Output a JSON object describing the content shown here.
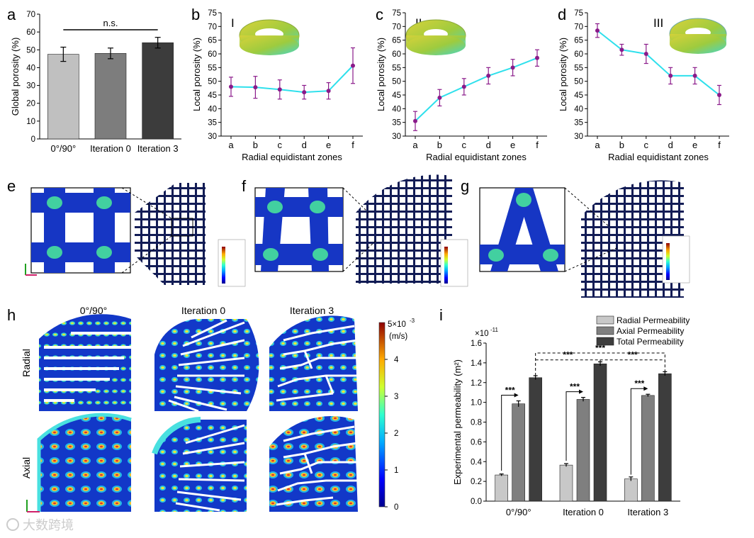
{
  "panel_labels": {
    "a": "a",
    "b": "b",
    "c": "c",
    "d": "d",
    "e": "e",
    "f": "f",
    "g": "g",
    "h": "h",
    "i": "i"
  },
  "watermark": "大数跨境",
  "chart_data": [
    {
      "id": "a",
      "type": "bar",
      "ylabel": "Global porosity (%)",
      "ylim": [
        0,
        70
      ],
      "yticks": [
        0,
        10,
        20,
        30,
        40,
        50,
        60,
        70
      ],
      "categories": [
        "0°/90°",
        "Iteration 0",
        "Iteration 3"
      ],
      "values": [
        47.5,
        48,
        54
      ],
      "errors": [
        4,
        3,
        3
      ],
      "colors": [
        "#c0c0c0",
        "#7d7d7d",
        "#3c3c3c"
      ],
      "annotation": "n.s."
    },
    {
      "id": "b",
      "type": "line",
      "roman": "I",
      "xlabel": "Radial equidistant zones",
      "ylabel": "Local porosity (%)",
      "ylim": [
        30,
        75
      ],
      "yticks": [
        30,
        35,
        40,
        45,
        50,
        55,
        60,
        65,
        70,
        75
      ],
      "categories": [
        "a",
        "b",
        "c",
        "d",
        "e",
        "f"
      ],
      "values": [
        48,
        47.8,
        47,
        46,
        46.5,
        55.7
      ],
      "errors": [
        3.5,
        4,
        3.5,
        2.5,
        3,
        6.5
      ]
    },
    {
      "id": "c",
      "type": "line",
      "roman": "II",
      "xlabel": "Radial equidistant zones",
      "ylabel": "Local porosity (%)",
      "ylim": [
        30,
        75
      ],
      "yticks": [
        30,
        35,
        40,
        45,
        50,
        55,
        60,
        65,
        70,
        75
      ],
      "categories": [
        "a",
        "b",
        "c",
        "d",
        "e",
        "f"
      ],
      "values": [
        35.5,
        44,
        48,
        52,
        55,
        58.5
      ],
      "errors": [
        3.5,
        3,
        3,
        3,
        3,
        3
      ]
    },
    {
      "id": "d",
      "type": "line",
      "roman": "III",
      "xlabel": "Radial equidistant zones",
      "ylabel": "Local porosity (%)",
      "ylim": [
        30,
        75
      ],
      "yticks": [
        30,
        35,
        40,
        45,
        50,
        55,
        60,
        65,
        70,
        75
      ],
      "categories": [
        "a",
        "b",
        "c",
        "d",
        "e",
        "f"
      ],
      "values": [
        68.5,
        61.5,
        60,
        52,
        52,
        45
      ],
      "errors": [
        2.5,
        2,
        3.5,
        3,
        3,
        3.5
      ]
    },
    {
      "id": "h",
      "type": "heatmap",
      "columns": [
        "0°/90°",
        "Iteration 0",
        "Iteration 3"
      ],
      "rows": [
        "Radial",
        "Axial"
      ],
      "colorbar": {
        "min": 0,
        "max": 5,
        "ticks": [
          0,
          1,
          2,
          3,
          4
        ],
        "max_label": "5×10",
        "max_exp": "-3",
        "unit": "(m/s)"
      }
    },
    {
      "id": "i",
      "type": "bar",
      "ylabel": "Experimental permeability (m²)",
      "scale_label": "×10",
      "scale_exp": "-11",
      "ylim": [
        0,
        1.6
      ],
      "yticks": [
        "0.0",
        "0.2",
        "0.4",
        "0.6",
        "0.8",
        "1.0",
        "1.2",
        "1.4",
        "1.6"
      ],
      "categories": [
        "0°/90°",
        "Iteration 0",
        "Iteration 3"
      ],
      "series": [
        {
          "name": "Radial Permeability",
          "color": "#c8c8c8",
          "values": [
            0.265,
            0.365,
            0.225
          ],
          "errors": [
            0.01,
            0.015,
            0.02
          ]
        },
        {
          "name": "Axial Permeability",
          "color": "#7f7f7f",
          "values": [
            0.985,
            1.03,
            1.07
          ],
          "errors": [
            0.03,
            0.02,
            0.012
          ]
        },
        {
          "name": "Total Permeability",
          "color": "#3d3d3d",
          "values": [
            1.25,
            1.39,
            1.29
          ],
          "errors": [
            0.02,
            0.02,
            0.02
          ]
        }
      ],
      "significance": "***"
    }
  ]
}
